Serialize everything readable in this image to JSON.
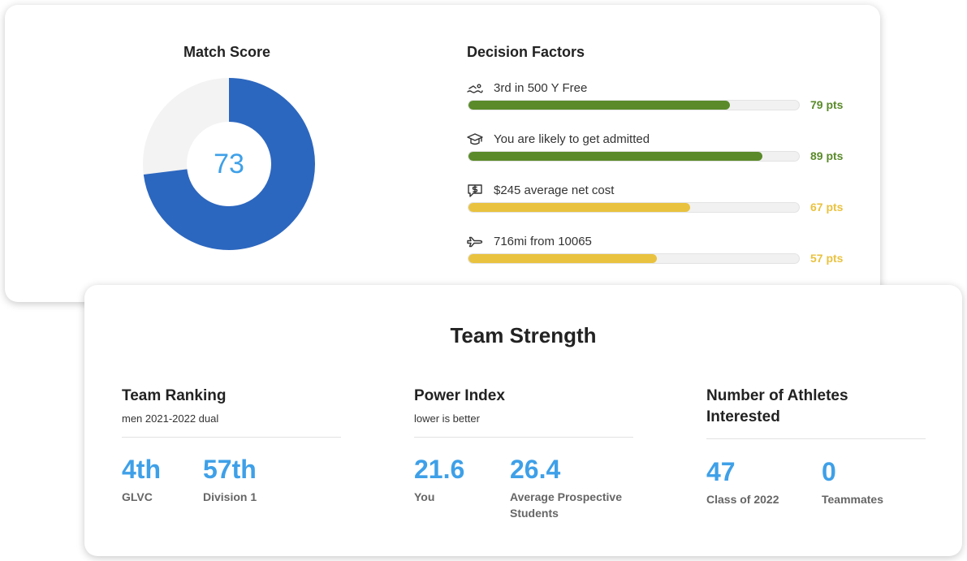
{
  "match_score": {
    "title": "Match Score",
    "score": "73",
    "score_value": 73,
    "colors": {
      "filled": "#2c67bf",
      "remaining": "#f3f3f3",
      "score_text": "#3ea0e8"
    }
  },
  "decision_factors": {
    "title": "Decision Factors",
    "items": [
      {
        "icon": "swimmer-icon",
        "label": "3rd in 500 Y Free",
        "points": "79 pts",
        "fill_percent": 79,
        "color": "#5a8a2a"
      },
      {
        "icon": "graduation-cap-icon",
        "label": "You are likely to get admitted",
        "points": "89 pts",
        "fill_percent": 89,
        "color": "#5a8a2a"
      },
      {
        "icon": "dollar-chat-icon",
        "label": "$245 average net cost",
        "points": "67 pts",
        "fill_percent": 67,
        "color": "#e9c23f"
      },
      {
        "icon": "airplane-icon",
        "label": "716mi from 10065",
        "points": "57 pts",
        "fill_percent": 57,
        "color": "#e9c23f"
      }
    ]
  },
  "team_strength": {
    "title": "Team Strength",
    "ranking": {
      "heading": "Team Ranking",
      "subheading": "men 2021-2022 dual",
      "stats": [
        {
          "value": "4th",
          "label": "GLVC"
        },
        {
          "value": "57th",
          "label": "Division 1"
        }
      ]
    },
    "power_index": {
      "heading": "Power Index",
      "subheading": "lower is better",
      "stats": [
        {
          "value": "21.6",
          "label": "You"
        },
        {
          "value": "26.4",
          "label": "Average Prospective Students"
        }
      ]
    },
    "athletes": {
      "heading": "Number of Athletes Interested",
      "stats": [
        {
          "value": "47",
          "label": "Class of 2022"
        },
        {
          "value": "0",
          "label": "Teammates"
        }
      ]
    }
  }
}
